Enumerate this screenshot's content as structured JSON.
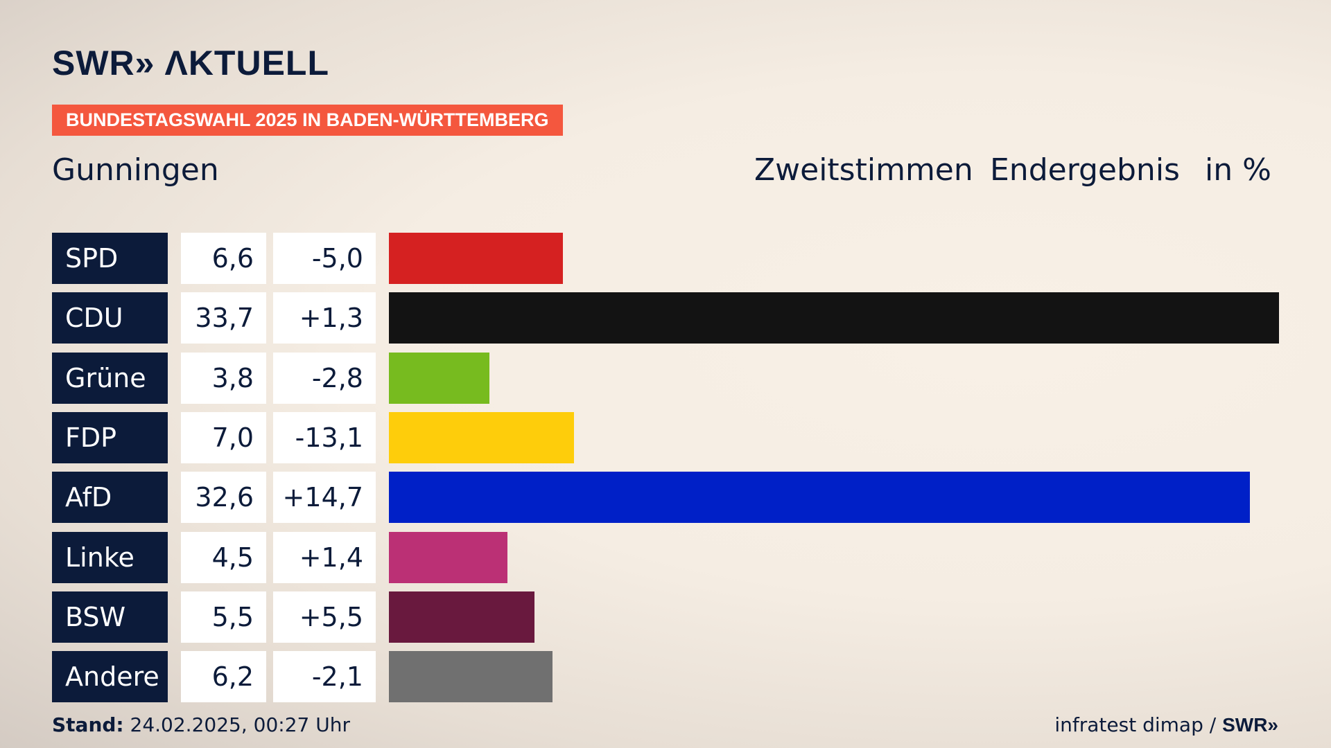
{
  "header": {
    "logo_swr": "SWR",
    "logo_chevrons": "»",
    "logo_aktuell": "ΛKTUELL",
    "banner": "BUNDESTAGSWAHL 2025 IN BADEN-WÜRTTEMBERG",
    "place": "Gunningen",
    "vote_type": "Zweitstimmen",
    "result_type": "Endergebnis",
    "unit": "in %"
  },
  "footer": {
    "stand_label": "Stand:",
    "stand_value": " 24.02.2025, 00:27 Uhr",
    "source": "infratest dimap / ",
    "brand": "SWR»"
  },
  "colors": {
    "navy": "#0c1b3a",
    "banner": "#f4573e"
  },
  "chart_data": {
    "type": "bar",
    "orientation": "horizontal",
    "categories": [
      "SPD",
      "CDU",
      "Grüne",
      "FDP",
      "AfD",
      "Linke",
      "BSW",
      "Andere"
    ],
    "series": [
      {
        "values": [
          6.6,
          33.7,
          3.8,
          7.0,
          32.6,
          4.5,
          5.5,
          6.2
        ]
      }
    ],
    "share_labels": [
      "6,6",
      "33,7",
      "3,8",
      "7,0",
      "32,6",
      "4,5",
      "5,5",
      "6,2"
    ],
    "diff_labels": [
      "-5,0",
      "+1,3",
      "-2,8",
      "-13,1",
      "+14,7",
      "+1,4",
      "+5,5",
      "-2,1"
    ],
    "bar_colors": [
      "#d52121",
      "#131313",
      "#77bb1f",
      "#fecd0b",
      "#0020c7",
      "#bb3075",
      "#69193e",
      "#707070"
    ],
    "xlim": [
      0,
      33.7
    ],
    "grid": false,
    "legend": "none"
  }
}
